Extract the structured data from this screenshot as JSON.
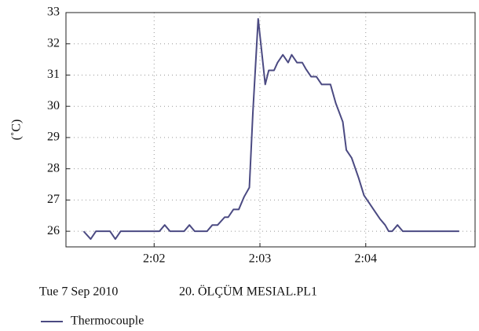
{
  "chart_data": {
    "type": "line",
    "y_label": "(˚C)",
    "date": "Tue 7 Sep 2010",
    "file": "20. ÖLÇÜM MESIAL.PL1",
    "x": [
      7280,
      7284,
      7287,
      7295,
      7298,
      7301,
      7323,
      7326,
      7329,
      7337,
      7340,
      7343,
      7350,
      7353,
      7356,
      7360,
      7362,
      7365,
      7368,
      7371,
      7374,
      7376,
      7379,
      7383,
      7385,
      7388,
      7390,
      7393,
      7396,
      7398,
      7401,
      7404,
      7406,
      7409,
      7412,
      7415,
      7420,
      7423,
      7427,
      7429,
      7432,
      7436,
      7439,
      7442,
      7445,
      7448,
      7451,
      7453,
      7455,
      7458,
      7461,
      7493
    ],
    "series": [
      {
        "name": "Thermocouple",
        "color": "#4b4a82",
        "values": [
          26.0,
          25.75,
          26.0,
          26.0,
          25.75,
          26.0,
          26.0,
          26.2,
          26.0,
          26.0,
          26.2,
          26.0,
          26.0,
          26.2,
          26.2,
          26.45,
          26.45,
          26.7,
          26.7,
          27.1,
          27.4,
          29.8,
          32.8,
          30.7,
          31.15,
          31.15,
          31.4,
          31.65,
          31.4,
          31.65,
          31.4,
          31.4,
          31.2,
          30.95,
          30.95,
          30.7,
          30.7,
          30.1,
          29.5,
          28.6,
          28.35,
          27.7,
          27.15,
          26.9,
          26.65,
          26.4,
          26.2,
          26.0,
          26.0,
          26.2,
          26.0,
          26.0
        ]
      }
    ],
    "xlim": [
      7270,
      7502
    ],
    "xticks": [
      {
        "value": 7320,
        "label": "2:02"
      },
      {
        "value": 7380,
        "label": "2:03"
      },
      {
        "value": 7440,
        "label": "2:04"
      }
    ],
    "ylim": [
      25.5,
      33.0
    ],
    "yticks": [
      26,
      27,
      28,
      29,
      30,
      31,
      32,
      33
    ],
    "grid": true
  }
}
